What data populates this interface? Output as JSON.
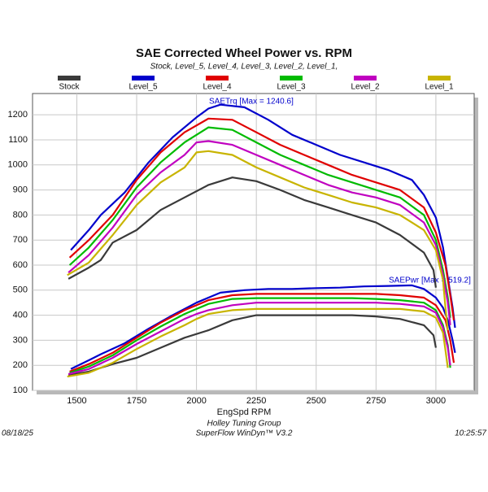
{
  "chart_data": {
    "type": "line",
    "title": "SAE Corrected Wheel Power vs. RPM",
    "subtitle": "Stock, Level_5, Level_4, Level_3, Level_2, Level_1,",
    "x_label": "EngSpd RPM",
    "annotations": [
      "SAETrq [Max = 1240.6]",
      "SAEPwr [Max = 519.2]"
    ],
    "footer": {
      "date": "08/18/25",
      "company": "Holley Tuning Group",
      "software": "SuperFlow WinDyn™ V3.2",
      "time": "10:25:57"
    },
    "xlim": [
      1315,
      3160
    ],
    "ylim": [
      100,
      1285
    ],
    "xticks": [
      1500,
      1750,
      2000,
      2250,
      2500,
      2750,
      3000
    ],
    "yticks": [
      100,
      200,
      300,
      400,
      500,
      600,
      700,
      800,
      900,
      1000,
      1100,
      1200
    ],
    "grid": true,
    "series": [
      {
        "name": "Stock",
        "color": "#3a3a3a",
        "x": [
          1465,
          1550,
          1600,
          1650,
          1750,
          1850,
          1950,
          2050,
          2150,
          2250,
          2350,
          2450,
          2550,
          2650,
          2750,
          2850,
          2950,
          2990,
          3000
        ],
        "torque": [
          545,
          590,
          620,
          690,
          740,
          820,
          870,
          920,
          950,
          935,
          900,
          860,
          830,
          800,
          770,
          720,
          650,
          580,
          510
        ],
        "power": [
          160,
          175,
          190,
          205,
          230,
          270,
          310,
          340,
          380,
          400,
          400,
          400,
          400,
          400,
          395,
          385,
          360,
          320,
          270
        ]
      },
      {
        "name": "Level_5",
        "color": "#0000cc",
        "x": [
          1475,
          1550,
          1600,
          1700,
          1800,
          1900,
          2000,
          2050,
          2100,
          2200,
          2300,
          2400,
          2500,
          2600,
          2700,
          2800,
          2900,
          2950,
          3000,
          3030,
          3050,
          3070,
          3080
        ],
        "torque": [
          660,
          740,
          800,
          890,
          1010,
          1110,
          1190,
          1225,
          1240.6,
          1230,
          1180,
          1120,
          1080,
          1040,
          1010,
          980,
          940,
          880,
          790,
          670,
          550,
          430,
          350
        ],
        "power": [
          185,
          220,
          244,
          288,
          346,
          400,
          450,
          470,
          490,
          500,
          505,
          505,
          508,
          510,
          515,
          517,
          519.2,
          505,
          470,
          430,
          380,
          300,
          250
        ]
      },
      {
        "name": "Level_4",
        "color": "#e00000",
        "x": [
          1470,
          1550,
          1650,
          1750,
          1850,
          1950,
          2050,
          2150,
          2250,
          2350,
          2450,
          2550,
          2650,
          2750,
          2850,
          2950,
          3000,
          3040,
          3060,
          3075
        ],
        "torque": [
          630,
          700,
          800,
          940,
          1050,
          1130,
          1185,
          1180,
          1130,
          1080,
          1040,
          1000,
          960,
          930,
          900,
          830,
          730,
          600,
          480,
          380
        ],
        "power": [
          175,
          205,
          250,
          310,
          370,
          420,
          460,
          480,
          485,
          485,
          485,
          485,
          485,
          485,
          480,
          470,
          440,
          380,
          300,
          210
        ]
      },
      {
        "name": "Level_3",
        "color": "#00bb00",
        "x": [
          1470,
          1550,
          1650,
          1750,
          1850,
          1950,
          2050,
          2150,
          2250,
          2350,
          2450,
          2550,
          2650,
          2750,
          2850,
          2950,
          3000,
          3030,
          3050,
          3060
        ],
        "torque": [
          600,
          670,
          780,
          910,
          1010,
          1090,
          1150,
          1140,
          1090,
          1040,
          1000,
          960,
          930,
          900,
          870,
          800,
          700,
          580,
          470,
          390
        ],
        "power": [
          170,
          195,
          240,
          300,
          355,
          405,
          445,
          465,
          468,
          468,
          468,
          468,
          468,
          465,
          460,
          450,
          420,
          360,
          280,
          190
        ]
      },
      {
        "name": "Level_2",
        "color": "#c000c0",
        "x": [
          1465,
          1550,
          1650,
          1750,
          1850,
          1950,
          2000,
          2050,
          2150,
          2250,
          2350,
          2450,
          2550,
          2650,
          2750,
          2850,
          2950,
          3000,
          3030,
          3050,
          3060
        ],
        "torque": [
          570,
          640,
          750,
          880,
          970,
          1040,
          1090,
          1095,
          1080,
          1040,
          1000,
          960,
          920,
          890,
          870,
          840,
          770,
          680,
          560,
          450,
          360
        ],
        "power": [
          165,
          185,
          230,
          285,
          335,
          385,
          405,
          420,
          440,
          450,
          450,
          450,
          450,
          450,
          450,
          445,
          435,
          410,
          350,
          270,
          200
        ]
      },
      {
        "name": "Level_1",
        "color": "#c8b400",
        "x": [
          1460,
          1550,
          1650,
          1750,
          1850,
          1950,
          2000,
          2050,
          2150,
          2250,
          2350,
          2450,
          2550,
          2650,
          2750,
          2850,
          2950,
          3000,
          3030,
          3040,
          3050
        ],
        "torque": [
          560,
          610,
          720,
          840,
          930,
          990,
          1050,
          1055,
          1040,
          990,
          950,
          910,
          880,
          850,
          830,
          800,
          740,
          660,
          540,
          430,
          340
        ],
        "power": [
          155,
          170,
          210,
          265,
          315,
          360,
          385,
          405,
          420,
          425,
          425,
          425,
          425,
          425,
          425,
          425,
          415,
          390,
          330,
          260,
          190
        ]
      }
    ]
  }
}
